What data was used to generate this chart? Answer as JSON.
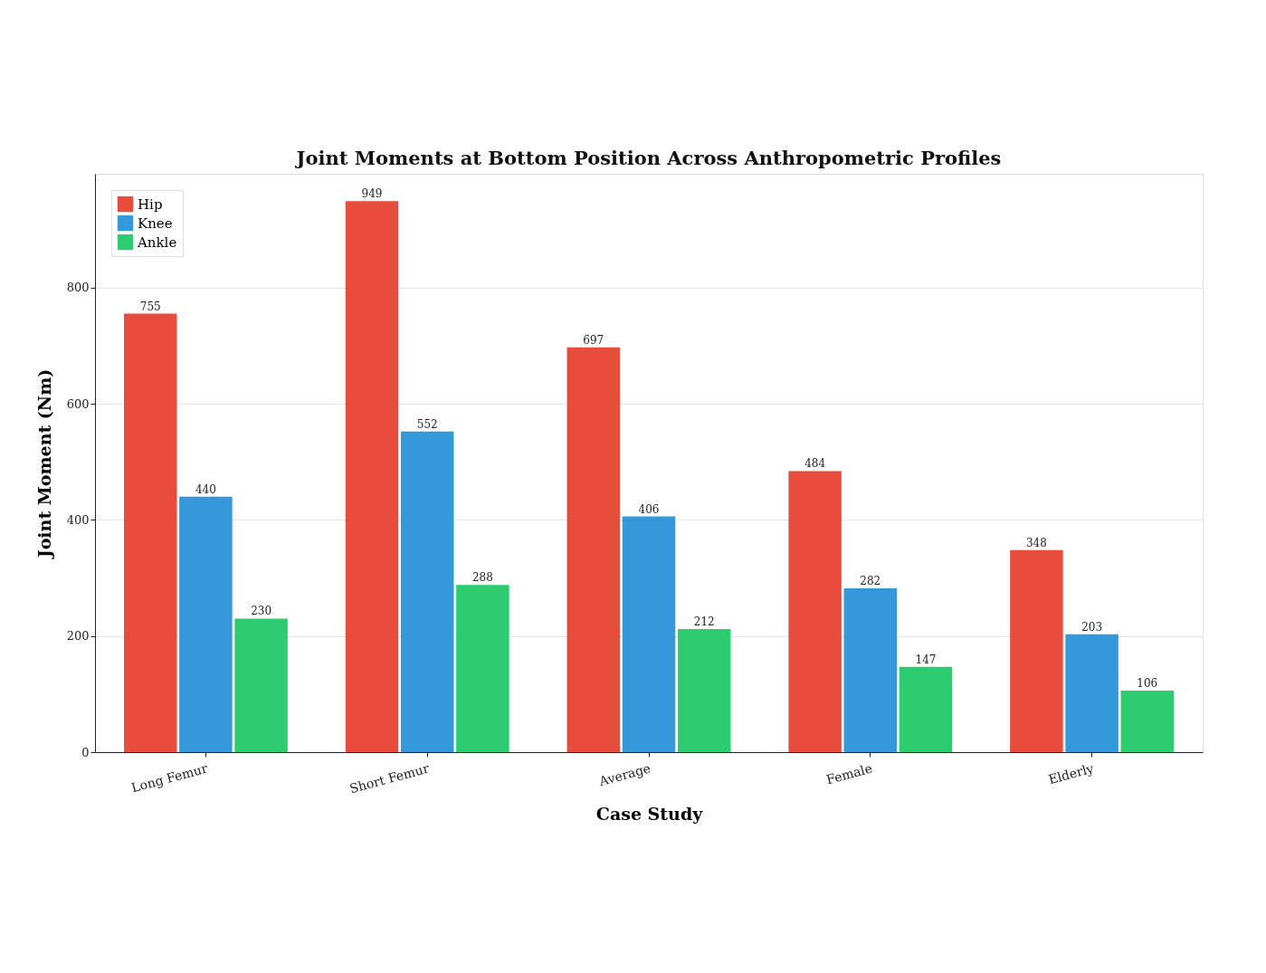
{
  "chart_data": {
    "type": "bar",
    "title": "Joint Moments at Bottom Position Across Anthropometric Profiles",
    "xlabel": "Case Study",
    "ylabel": "Joint Moment (Nm)",
    "categories": [
      "Long Femur",
      "Short Femur",
      "Average",
      "Female",
      "Elderly"
    ],
    "series": [
      {
        "name": "Hip",
        "color": "#e74c3c",
        "values": [
          755,
          949,
          697,
          484,
          348
        ]
      },
      {
        "name": "Knee",
        "color": "#3498db",
        "values": [
          440,
          552,
          406,
          282,
          203
        ]
      },
      {
        "name": "Ankle",
        "color": "#2ecc71",
        "values": [
          230,
          288,
          212,
          147,
          106
        ]
      }
    ],
    "ylim": [
      0,
      996
    ],
    "yticks": [
      0,
      200,
      400,
      600,
      800
    ],
    "grid": "y",
    "legend": "top left",
    "data_labels": true
  }
}
